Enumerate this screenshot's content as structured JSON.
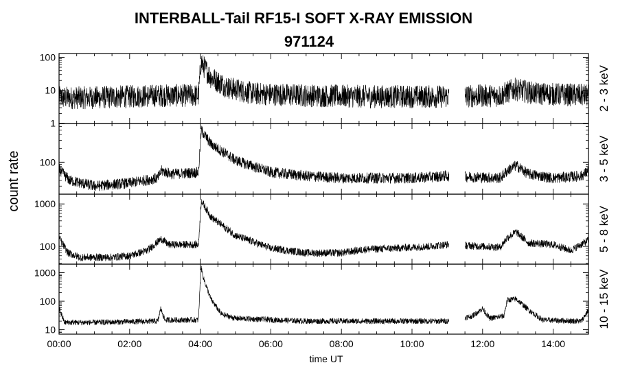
{
  "chart_data": {
    "type": "line",
    "title": "INTERBALL-Tail RF15-I SOFT X-RAY EMISSION",
    "subtitle": "971124",
    "ylabel": "count rate",
    "xlabel": "time UT",
    "x_ticks": [
      "00:00",
      "02:00",
      "04:00",
      "06:00",
      "08:00",
      "10:00",
      "12:00",
      "14:00"
    ],
    "xlim_hours": [
      0,
      15
    ],
    "data_gap_hours": [
      11.05,
      11.5
    ],
    "y_scale": "log",
    "series": [
      {
        "name": "2 - 3 keV",
        "ylim": [
          1,
          130
        ],
        "y_ticks": [
          "1",
          "10",
          "100"
        ],
        "baseline": 6,
        "noise_decades": 0.35,
        "points": [
          [
            0,
            6
          ],
          [
            0.9,
            6
          ],
          [
            2.9,
            7
          ],
          [
            3.95,
            7
          ],
          [
            4.02,
            70
          ],
          [
            4.3,
            25
          ],
          [
            4.8,
            12
          ],
          [
            5.5,
            8
          ],
          [
            7,
            7
          ],
          [
            9,
            6.5
          ],
          [
            11,
            6.5
          ],
          [
            12.5,
            7
          ],
          [
            12.9,
            11
          ],
          [
            13.5,
            8
          ],
          [
            15,
            7
          ]
        ]
      },
      {
        "name": "3 - 5 keV",
        "ylim": [
          20,
          700
        ],
        "y_ticks": [
          "100"
        ],
        "baseline": 40,
        "noise_decades": 0.12,
        "points": [
          [
            0,
            70
          ],
          [
            0.3,
            40
          ],
          [
            1.0,
            30
          ],
          [
            2.0,
            35
          ],
          [
            2.8,
            45
          ],
          [
            2.9,
            65
          ],
          [
            3.2,
            55
          ],
          [
            3.95,
            60
          ],
          [
            4.03,
            500
          ],
          [
            4.3,
            250
          ],
          [
            5.0,
            110
          ],
          [
            6.0,
            60
          ],
          [
            7.0,
            50
          ],
          [
            8.0,
            45
          ],
          [
            10.0,
            45
          ],
          [
            11.0,
            50
          ],
          [
            12.5,
            45
          ],
          [
            12.7,
            65
          ],
          [
            12.95,
            85
          ],
          [
            13.3,
            55
          ],
          [
            14.0,
            45
          ],
          [
            14.8,
            50
          ],
          [
            15,
            65
          ]
        ]
      },
      {
        "name": "5 - 8 keV",
        "ylim": [
          38,
          1700
        ],
        "y_ticks": [
          "100",
          "1000"
        ],
        "baseline": 70,
        "noise_decades": 0.09,
        "points": [
          [
            0,
            160
          ],
          [
            0.25,
            70
          ],
          [
            0.6,
            55
          ],
          [
            1.5,
            55
          ],
          [
            2.0,
            60
          ],
          [
            2.5,
            80
          ],
          [
            2.9,
            150
          ],
          [
            3.1,
            110
          ],
          [
            3.95,
            110
          ],
          [
            4.03,
            1200
          ],
          [
            4.3,
            500
          ],
          [
            5.0,
            180
          ],
          [
            6.0,
            90
          ],
          [
            7.0,
            70
          ],
          [
            8.0,
            70
          ],
          [
            8.7,
            85
          ],
          [
            9.5,
            90
          ],
          [
            10.5,
            100
          ],
          [
            11.0,
            110
          ],
          [
            12.5,
            95
          ],
          [
            12.7,
            160
          ],
          [
            12.95,
            220
          ],
          [
            13.3,
            120
          ],
          [
            14.0,
            110
          ],
          [
            14.5,
            80
          ],
          [
            15,
            140
          ]
        ]
      },
      {
        "name": "10 - 15 keV",
        "ylim": [
          7,
          2000
        ],
        "y_ticks": [
          "10",
          "100",
          "1000"
        ],
        "baseline": 18,
        "noise_decades": 0.1,
        "points": [
          [
            0,
            60
          ],
          [
            0.15,
            18
          ],
          [
            1.0,
            18
          ],
          [
            2.8,
            20
          ],
          [
            2.88,
            55
          ],
          [
            3.0,
            22
          ],
          [
            3.95,
            22
          ],
          [
            4.02,
            1600
          ],
          [
            4.1,
            600
          ],
          [
            4.3,
            120
          ],
          [
            4.6,
            35
          ],
          [
            5.0,
            25
          ],
          [
            7.0,
            20
          ],
          [
            9.0,
            20
          ],
          [
            11.0,
            20
          ],
          [
            11.7,
            30
          ],
          [
            12.0,
            55
          ],
          [
            12.2,
            25
          ],
          [
            12.6,
            30
          ],
          [
            12.7,
            110
          ],
          [
            12.95,
            120
          ],
          [
            13.3,
            50
          ],
          [
            13.7,
            22
          ],
          [
            14.8,
            20
          ],
          [
            15,
            50
          ]
        ]
      }
    ]
  }
}
